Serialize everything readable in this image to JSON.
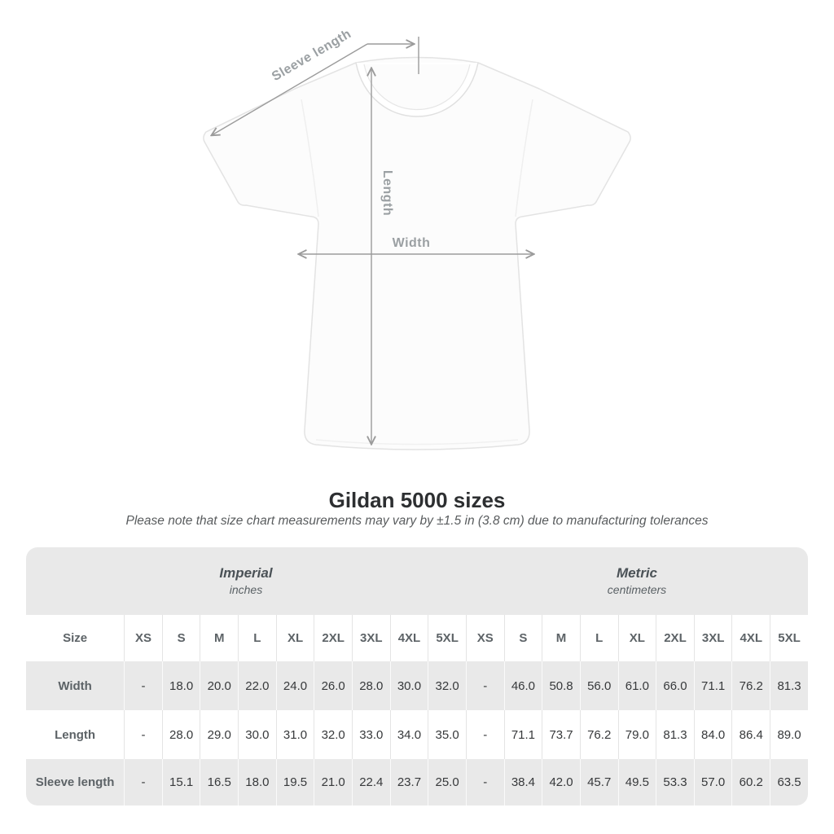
{
  "title": "Gildan 5000 sizes",
  "subtitle": "Please note that size chart measurements may vary by ±1.5 in (3.8 cm) due to manufacturing tolerances",
  "figure": {
    "labels": {
      "sleeve": "Sleeve length",
      "length": "Length",
      "width": "Width"
    }
  },
  "colors": {
    "table_band_gray": "#e9e9e9",
    "row_alt_gray": "#e9e9e9",
    "measure_line_gray": "#9b9b9b",
    "measure_label_gray": "#9ba0a3",
    "label_text": "#5d6367",
    "value_text": "#37393b"
  },
  "table": {
    "size_col_header": "Size",
    "unit_groups": [
      {
        "label": "Imperial",
        "sublabel": "inches"
      },
      {
        "label": "Metric",
        "sublabel": "centimeters"
      }
    ],
    "sizes": [
      "XS",
      "S",
      "M",
      "L",
      "XL",
      "2XL",
      "3XL",
      "4XL",
      "5XL"
    ],
    "rows": [
      {
        "label": "Width",
        "imperial": [
          "-",
          "18.0",
          "20.0",
          "22.0",
          "24.0",
          "26.0",
          "28.0",
          "30.0",
          "32.0"
        ],
        "metric": [
          "-",
          "46.0",
          "50.8",
          "56.0",
          "61.0",
          "66.0",
          "71.1",
          "76.2",
          "81.3"
        ]
      },
      {
        "label": "Length",
        "imperial": [
          "-",
          "28.0",
          "29.0",
          "30.0",
          "31.0",
          "32.0",
          "33.0",
          "34.0",
          "35.0"
        ],
        "metric": [
          "-",
          "71.1",
          "73.7",
          "76.2",
          "79.0",
          "81.3",
          "84.0",
          "86.4",
          "89.0"
        ]
      },
      {
        "label": "Sleeve length",
        "imperial": [
          "-",
          "15.1",
          "16.5",
          "18.0",
          "19.5",
          "21.0",
          "22.4",
          "23.7",
          "25.0"
        ],
        "metric": [
          "-",
          "38.4",
          "42.0",
          "45.7",
          "49.5",
          "53.3",
          "57.0",
          "60.2",
          "63.5"
        ]
      }
    ]
  }
}
